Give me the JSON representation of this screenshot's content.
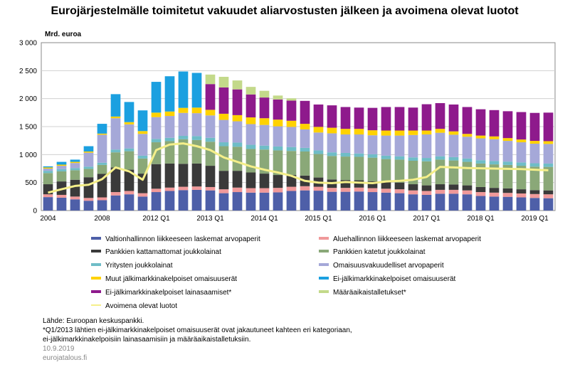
{
  "title": "Eurojärjestelmälle toimitetut vakuudet aliarvostusten jälkeen ja avoimena olevat luotot",
  "unit_label": "Mrd. euroa",
  "chart_data": {
    "type": "bar",
    "stacked": true,
    "ylim": [
      0,
      3000
    ],
    "yticks": [
      0,
      500,
      1000,
      1500,
      2000,
      2500,
      3000
    ],
    "ytick_labels": [
      "0",
      "500",
      "1 000",
      "1 500",
      "2 000",
      "2 500",
      "3 000"
    ],
    "grid": "horizontal",
    "xtick_labels": [
      {
        "at": 0,
        "label": "2004"
      },
      {
        "at": 4,
        "label": "2008"
      },
      {
        "at": 8,
        "label": "2012 Q1"
      },
      {
        "at": 12,
        "label": "2013 Q1"
      },
      {
        "at": 16,
        "label": "2014 Q1"
      },
      {
        "at": 20,
        "label": "2015 Q1"
      },
      {
        "at": 24,
        "label": "2016 Q1"
      },
      {
        "at": 28,
        "label": "2017 Q1"
      },
      {
        "at": 32,
        "label": "2018 Q1"
      },
      {
        "at": 36,
        "label": "2019 Q1"
      }
    ],
    "n_bars": 38,
    "series": [
      {
        "name": "Valtionhallinnon liikkeeseen laskemat arvopaperit",
        "color": "#4e5fa8",
        "values": [
          240,
          230,
          200,
          175,
          185,
          270,
          290,
          250,
          330,
          350,
          365,
          370,
          360,
          310,
          330,
          320,
          320,
          325,
          350,
          360,
          355,
          335,
          335,
          340,
          330,
          320,
          310,
          290,
          280,
          300,
          300,
          290,
          260,
          250,
          245,
          235,
          225,
          220
        ]
      },
      {
        "name": "Aluehallinnon liikkeeseen laskemat arvopaperit",
        "color": "#f0999a",
        "values": [
          50,
          50,
          50,
          50,
          50,
          60,
          60,
          60,
          60,
          60,
          60,
          60,
          60,
          70,
          80,
          80,
          80,
          80,
          75,
          75,
          70,
          70,
          70,
          70,
          70,
          70,
          70,
          70,
          70,
          70,
          70,
          70,
          70,
          70,
          70,
          70,
          70,
          70
        ]
      },
      {
        "name": "Pankkien kattamattomat joukkolainat",
        "color": "#3a3a3a",
        "values": [
          180,
          240,
          300,
          370,
          420,
          440,
          380,
          350,
          440,
          430,
          410,
          410,
          380,
          330,
          300,
          280,
          260,
          230,
          210,
          190,
          165,
          150,
          140,
          130,
          125,
          120,
          120,
          110,
          100,
          100,
          95,
          90,
          90,
          85,
          80,
          75,
          70,
          70
        ]
      },
      {
        "name": "Pankkien katetut joukkolainat",
        "color": "#8aa878",
        "values": [
          200,
          180,
          170,
          150,
          160,
          270,
          330,
          270,
          390,
          400,
          440,
          420,
          430,
          440,
          430,
          420,
          430,
          440,
          430,
          430,
          420,
          420,
          420,
          420,
          420,
          410,
          410,
          420,
          430,
          440,
          430,
          420,
          420,
          420,
          420,
          420,
          420,
          420
        ]
      },
      {
        "name": "Yritysten joukkolainat",
        "color": "#6fbdc7",
        "values": [
          40,
          40,
          40,
          40,
          40,
          50,
          50,
          50,
          60,
          60,
          60,
          70,
          70,
          70,
          75,
          75,
          70,
          70,
          70,
          65,
          65,
          65,
          65,
          60,
          60,
          60,
          60,
          60,
          60,
          60,
          60,
          60,
          60,
          60,
          60,
          60,
          60,
          60
        ]
      },
      {
        "name": "Omaisuusvakuudelliset arvopaperit",
        "color": "#a5a8d8",
        "values": [
          40,
          60,
          90,
          250,
          500,
          560,
          430,
          390,
          390,
          390,
          410,
          410,
          400,
          400,
          380,
          370,
          370,
          360,
          360,
          330,
          320,
          340,
          330,
          340,
          340,
          360,
          370,
          400,
          420,
          420,
          400,
          390,
          390,
          390,
          370,
          360,
          350,
          350
        ]
      },
      {
        "name": "Muut jälkimarkkinakelpoiset omaisuuserät",
        "color": "#ffd200",
        "values": [
          20,
          20,
          20,
          20,
          20,
          30,
          40,
          50,
          80,
          80,
          90,
          100,
          100,
          110,
          110,
          120,
          120,
          120,
          110,
          100,
          100,
          100,
          100,
          100,
          90,
          90,
          90,
          80,
          70,
          70,
          60,
          50,
          50,
          50,
          50,
          50,
          50,
          50
        ]
      },
      {
        "name": "Ei-jälkimarkkinakelpoiset omaisuuserät",
        "color": "#1ba0e0",
        "values": [
          20,
          50,
          40,
          95,
          175,
          400,
          360,
          370,
          550,
          630,
          650,
          620,
          0,
          0,
          0,
          0,
          0,
          0,
          0,
          0,
          0,
          0,
          0,
          0,
          0,
          0,
          0,
          0,
          0,
          0,
          0,
          0,
          0,
          0,
          0,
          0,
          0,
          0
        ]
      },
      {
        "name": "Ei-jälkimarkkinakelpoiset lainasaamiset*",
        "color": "#8e1a8c",
        "values": [
          0,
          0,
          0,
          0,
          0,
          0,
          0,
          0,
          0,
          0,
          0,
          0,
          460,
          470,
          460,
          410,
          370,
          360,
          360,
          410,
          400,
          400,
          390,
          380,
          400,
          420,
          420,
          410,
          470,
          460,
          480,
          480,
          470,
          470,
          480,
          490,
          500,
          510
        ]
      },
      {
        "name": "Määräaikaistalletukset*",
        "color": "#c3d98a",
        "values": [
          0,
          0,
          0,
          0,
          0,
          0,
          0,
          0,
          0,
          0,
          0,
          0,
          170,
          190,
          160,
          135,
          120,
          70,
          40,
          0,
          0,
          0,
          0,
          0,
          0,
          0,
          0,
          0,
          0,
          0,
          0,
          0,
          0,
          0,
          0,
          0,
          0,
          0
        ]
      }
    ],
    "line": {
      "name": "Avoimena olevat luotot",
      "color": "#f5ef8a",
      "values": [
        320,
        380,
        440,
        460,
        560,
        770,
        700,
        550,
        1080,
        1180,
        1200,
        1150,
        1080,
        950,
        870,
        790,
        730,
        680,
        620,
        530,
        500,
        490,
        510,
        500,
        490,
        520,
        530,
        550,
        600,
        780,
        770,
        760,
        755,
        750,
        745,
        740,
        730,
        720
      ]
    }
  },
  "legend": [
    {
      "label": "Valtionhallinnon liikkeeseen laskemat arvopaperit",
      "color": "#4e5fa8"
    },
    {
      "label": "Aluehallinnon liikkeeseen laskemat arvopaperit",
      "color": "#f0999a"
    },
    {
      "label": "Pankkien kattamattomat joukkolainat",
      "color": "#3a3a3a"
    },
    {
      "label": "Pankkien katetut joukkolainat",
      "color": "#8aa878"
    },
    {
      "label": "Yritysten joukkolainat",
      "color": "#6fbdc7"
    },
    {
      "label": "Omaisuusvakuudelliset arvopaperit",
      "color": "#a5a8d8"
    },
    {
      "label": "Muut jälkimarkkinakelpoiset omaisuuserät",
      "color": "#ffd200"
    },
    {
      "label": "Ei-jälkimarkkinakelpoiset omaisuuserät",
      "color": "#1ba0e0"
    },
    {
      "label": "Ei-jälkimarkkinakelpoiset lainasaamiset*",
      "color": "#8e1a8c"
    },
    {
      "label": "Määräaikaistalletukset*",
      "color": "#c3d98a"
    },
    {
      "label": "Avoimena olevat luotot",
      "color": "#f5ef8a"
    }
  ],
  "footer": {
    "source": "Lähde: Euroopan keskuspankki.",
    "note_line1": "*Q1/2013 lähtien ei-jälkimarkkinakelpoiset omaisuuserät ovat jakautuneet kahteen eri kategoriaan,",
    "note_line2": "ei-jälkimarkkinakelpoisiin lainasaamisiin ja määräaikaistalletuksiin.",
    "date": "10.9.2019",
    "site": "eurojatalous.fi"
  }
}
